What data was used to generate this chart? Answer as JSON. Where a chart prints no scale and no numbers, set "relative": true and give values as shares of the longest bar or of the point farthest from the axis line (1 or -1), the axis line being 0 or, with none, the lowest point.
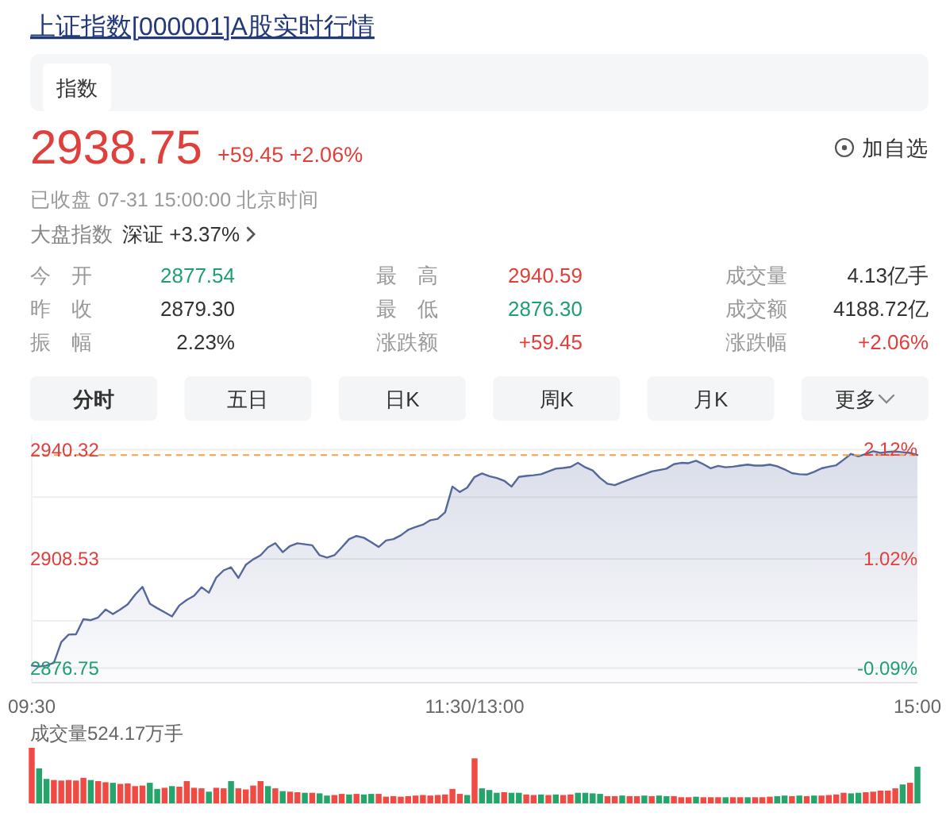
{
  "chart_data": [
    {
      "type": "other",
      "title": "上证指数[000001]A股实时行情",
      "annotations": [
        "指数",
        "2938.75",
        "+59.45 +2.06%",
        "加自选",
        "已收盘 07-31 15:00:00 北京时间",
        "大盘指数",
        "深证 +3.37%",
        "今 开",
        "2877.54",
        "最 高",
        "2940.59",
        "成交量",
        "4.13亿手",
        "昨 收",
        "2879.30",
        "最 低",
        "2876.30",
        "成交额",
        "4188.72亿",
        "振 幅",
        "2.23%",
        "涨跌额",
        "+59.45",
        "涨跌幅",
        "+2.06%",
        "分时",
        "五日",
        "日K",
        "周K",
        "月K",
        "更多"
      ]
    },
    {
      "type": "area",
      "categories": [
        "09:30",
        null,
        null,
        null,
        null,
        null,
        null,
        null,
        null,
        null,
        null,
        null,
        null,
        null,
        null,
        null,
        null,
        null,
        null,
        null,
        null,
        null,
        null,
        null,
        null,
        null,
        null,
        null,
        null,
        null,
        null,
        null,
        null,
        null,
        null,
        null,
        null,
        null,
        null,
        null,
        null,
        null,
        null,
        null,
        null,
        null,
        null,
        null,
        null,
        null,
        null,
        null,
        null,
        null,
        null,
        null,
        null,
        null,
        null,
        null,
        "11:30/13:00",
        null,
        null,
        null,
        null,
        null,
        null,
        null,
        null,
        null,
        null,
        null,
        null,
        null,
        null,
        null,
        null,
        null,
        null,
        null,
        null,
        null,
        null,
        null,
        null,
        null,
        null,
        null,
        null,
        null,
        null,
        null,
        null,
        null,
        null,
        null,
        null,
        null,
        null,
        null,
        null,
        null,
        null,
        null,
        null,
        null,
        null,
        null,
        null,
        null,
        null,
        null,
        null,
        null,
        null,
        null,
        null,
        null,
        null,
        null,
        "15:00"
      ],
      "series": [
        {
          "color": "#55679b",
          "values": [
            2877.5,
            2877.2,
            2877.5,
            2878.3,
            2884.3,
            2886.5,
            2886.6,
            2891.0,
            2890.7,
            2891.5,
            2893.8,
            2892.5,
            2893.8,
            2895.3,
            2898.1,
            2900.4,
            2895.5,
            2894.2,
            2893.0,
            2891.8,
            2895.0,
            2896.6,
            2897.8,
            2900.3,
            2898.7,
            2903.1,
            2905.2,
            2906.1,
            2903.0,
            2906.8,
            2908.4,
            2909.6,
            2911.9,
            2913.1,
            2910.5,
            2912.3,
            2913.1,
            2912.8,
            2912.5,
            2909.6,
            2908.9,
            2909.6,
            2911.9,
            2914.3,
            2915.2,
            2914.7,
            2913.4,
            2912.0,
            2913.9,
            2914.3,
            2915.4,
            2917.0,
            2917.8,
            2918.5,
            2919.8,
            2920.2,
            2922.1,
            2929.6,
            2928.0,
            2929.3,
            2932.4,
            2933.4,
            2932.6,
            2932.1,
            2931.3,
            2929.6,
            2932.4,
            2932.7,
            2932.9,
            2933.2,
            2934.0,
            2934.8,
            2935.0,
            2935.3,
            2936.5,
            2935.2,
            2934.3,
            2932.1,
            2930.4,
            2930.0,
            2930.9,
            2931.7,
            2932.5,
            2933.2,
            2934.0,
            2934.4,
            2934.8,
            2936.1,
            2936.5,
            2936.4,
            2937.1,
            2936.1,
            2934.9,
            2935.6,
            2935.2,
            2935.4,
            2935.7,
            2936.0,
            2935.7,
            2935.7,
            2936.0,
            2935.5,
            2934.6,
            2933.5,
            2933.2,
            2933.1,
            2933.9,
            2934.9,
            2935.4,
            2935.8,
            2937.4,
            2939.1,
            2938.4,
            2939.1,
            2939.9,
            2939.4,
            2939.7,
            2939.8,
            2939.6,
            2939.4,
            2938.8
          ]
        }
      ],
      "ylim": [
        2872.5,
        2944.6
      ],
      "yticks": [
        2876.75,
        {
          "value": 2890.5,
          "label": null
        },
        2908.53,
        {
          "value": 2926.5,
          "label": null
        },
        2940.32
      ],
      "y2lim": [
        -0.236,
        2.268
      ],
      "y2ticks": [
        {
          "value": -0.09,
          "label": "-0.09%"
        },
        {
          "value": 1.02,
          "label": "1.02%"
        },
        {
          "value": 2.12,
          "label": "2.12%"
        }
      ],
      "grid": "y",
      "ref_lines": [
        {
          "axis": "y",
          "value": 2938.75,
          "color": "#f0a04b",
          "line_style": "dashed"
        }
      ]
    },
    {
      "type": "bar",
      "title": "成交量524.17万手",
      "relative": true,
      "categories": [
        null,
        null,
        null,
        null,
        null,
        null,
        null,
        null,
        null,
        null,
        null,
        null,
        null,
        null,
        null,
        null,
        null,
        null,
        null,
        null,
        null,
        null,
        null,
        null,
        null,
        null,
        null,
        null,
        null,
        null,
        null,
        null,
        null,
        null,
        null,
        null,
        null,
        null,
        null,
        null,
        null,
        null,
        null,
        null,
        null,
        null,
        null,
        null,
        null,
        null,
        null,
        null,
        null,
        null,
        null,
        null,
        null,
        null,
        null,
        null,
        null,
        null,
        null,
        null,
        null,
        null,
        null,
        null,
        null,
        null,
        null,
        null,
        null,
        null,
        null,
        null,
        null,
        null,
        null,
        null,
        null,
        null,
        null,
        null,
        null,
        null,
        null,
        null,
        null,
        null,
        null,
        null,
        null,
        null,
        null,
        null,
        null,
        null,
        null,
        null,
        null,
        null,
        null,
        null,
        null,
        null,
        null,
        null,
        null,
        null,
        null,
        null,
        null,
        null,
        null,
        null,
        null,
        null,
        null,
        null,
        null
      ],
      "values": [
        1.0,
        0.63,
        0.44,
        0.42,
        0.41,
        0.42,
        0.41,
        0.46,
        0.42,
        0.4,
        0.38,
        0.37,
        0.35,
        0.36,
        0.31,
        0.32,
        0.37,
        0.26,
        0.28,
        0.31,
        0.3,
        0.4,
        0.28,
        0.27,
        0.21,
        0.28,
        0.27,
        0.4,
        0.27,
        0.25,
        0.32,
        0.4,
        0.31,
        0.27,
        0.22,
        0.21,
        0.2,
        0.19,
        0.19,
        0.18,
        0.14,
        0.15,
        0.17,
        0.16,
        0.17,
        0.16,
        0.17,
        0.17,
        0.12,
        0.13,
        0.12,
        0.13,
        0.14,
        0.15,
        0.14,
        0.15,
        0.16,
        0.26,
        0.17,
        0.15,
        0.81,
        0.27,
        0.24,
        0.19,
        0.2,
        0.19,
        0.19,
        0.16,
        0.15,
        0.16,
        0.15,
        0.16,
        0.15,
        0.16,
        0.19,
        0.19,
        0.18,
        0.17,
        0.13,
        0.13,
        0.14,
        0.13,
        0.13,
        0.14,
        0.13,
        0.14,
        0.13,
        0.13,
        0.11,
        0.11,
        0.12,
        0.11,
        0.11,
        0.11,
        0.11,
        0.11,
        0.11,
        0.11,
        0.11,
        0.11,
        0.12,
        0.13,
        0.14,
        0.13,
        0.14,
        0.13,
        0.14,
        0.14,
        0.15,
        0.16,
        0.19,
        0.18,
        0.19,
        0.2,
        0.21,
        0.23,
        0.23,
        0.27,
        0.34,
        0.37,
        0.66
      ],
      "colors": [
        "#f04a45",
        "#25a56b",
        "#25a56b",
        "#f04a45",
        "#f04a45",
        "#f04a45",
        "#f04a45",
        "#f04a45",
        "#25a56b",
        "#f04a45",
        "#f04a45",
        "#25a56b",
        "#f04a45",
        "#f04a45",
        "#f04a45",
        "#f04a45",
        "#25a56b",
        "#25a56b",
        "#f04a45",
        "#25a56b",
        "#f04a45",
        "#f04a45",
        "#f04a45",
        "#f04a45",
        "#25a56b",
        "#f04a45",
        "#f04a45",
        "#25a56b",
        "#f04a45",
        "#f04a45",
        "#f04a45",
        "#f04a45",
        "#25a56b",
        "#f04a45",
        "#25a56b",
        "#f04a45",
        "#f04a45",
        "#25a56b",
        "#f04a45",
        "#25a56b",
        "#25a56b",
        "#f04a45",
        "#f04a45",
        "#25a56b",
        "#f04a45",
        "#25a56b",
        "#25a56b",
        "#f04a45",
        "#f04a45",
        "#f04a45",
        "#f04a45",
        "#f04a45",
        "#f04a45",
        "#f04a45",
        "#f04a45",
        "#f04a45",
        "#f04a45",
        "#f04a45",
        "#f04a45",
        "#25a56b",
        "#f04a45",
        "#25a56b",
        "#25a56b",
        "#25a56b",
        "#f04a45",
        "#25a56b",
        "#25a56b",
        "#f04a45",
        "#f04a45",
        "#25a56b",
        "#f04a45",
        "#25a56b",
        "#f04a45",
        "#f04a45",
        "#25a56b",
        "#25a56b",
        "#25a56b",
        "#25a56b",
        "#f04a45",
        "#f04a45",
        "#25a56b",
        "#f04a45",
        "#f04a45",
        "#25a56b",
        "#f04a45",
        "#25a56b",
        "#25a56b",
        "#f04a45",
        "#f04a45",
        "#f04a45",
        "#25a56b",
        "#f04a45",
        "#f04a45",
        "#f04a45",
        "#25a56b",
        "#f04a45",
        "#f04a45",
        "#25a56b",
        "#f04a45",
        "#f04a45",
        "#f04a45",
        "#25a56b",
        "#25a56b",
        "#f04a45",
        "#25a56b",
        "#f04a45",
        "#25a56b",
        "#f04a45",
        "#f04a45",
        "#f04a45",
        "#f04a45",
        "#25a56b",
        "#25a56b",
        "#f04a45",
        "#f04a45",
        "#f04a45",
        "#f04a45",
        "#f04a45",
        "#25a56b",
        "#f04a45",
        "#25a56b"
      ]
    }
  ]
}
